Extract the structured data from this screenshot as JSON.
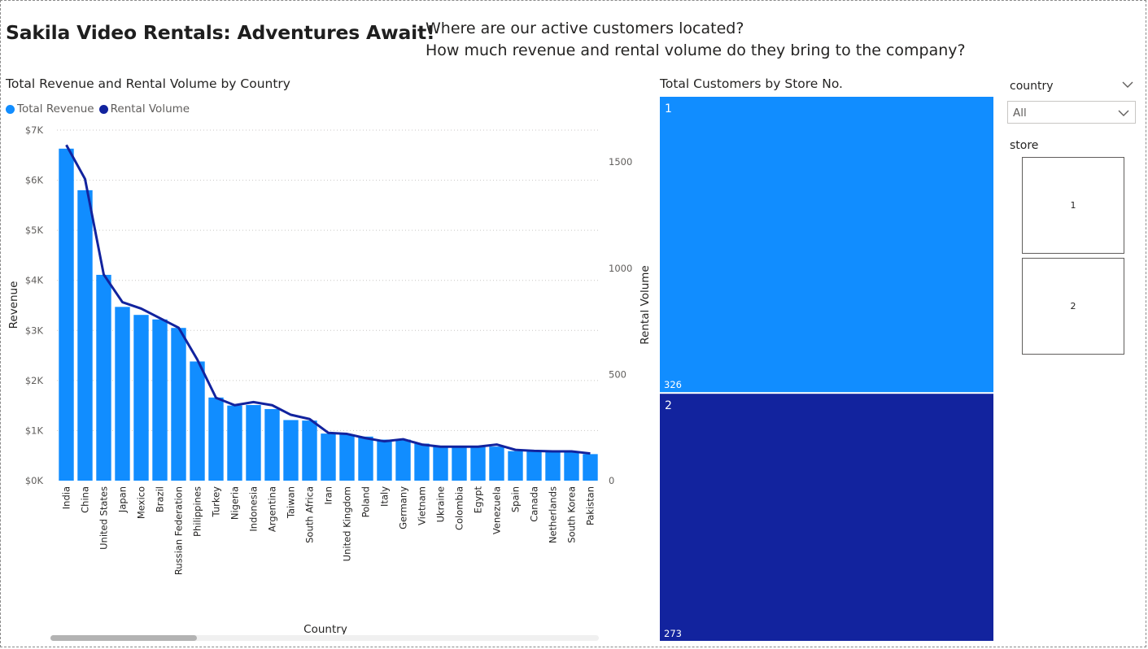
{
  "header": {
    "title": "Sakila Video Rentals: Adventures Await!",
    "question_1": "Where are our active customers located?",
    "question_2": "How much revenue and rental volume do they bring to the company?"
  },
  "combo_chart": {
    "title": "Total Revenue and Rental Volume by Country",
    "legend": [
      {
        "label": "Total Revenue",
        "color": "#118dff"
      },
      {
        "label": "Rental Volume",
        "color": "#12239e"
      }
    ]
  },
  "treemap": {
    "title": "Total Customers by Store No."
  },
  "slicers": {
    "country": {
      "label": "country",
      "selected": "All"
    },
    "store": {
      "label": "store",
      "tiles": [
        "1",
        "2"
      ]
    }
  },
  "icons": {
    "country_header": "chevron-down-icon",
    "country_dropdown": "chevron-down-icon"
  },
  "chart_data": [
    {
      "type": "bar",
      "title": "Total Revenue and Rental Volume by Country",
      "xlabel": "Country",
      "ylabel": "Revenue",
      "y2label": "Rental Volume",
      "ylim": [
        0,
        7000
      ],
      "y2lim": [
        0,
        1650
      ],
      "yticks": [
        "$0K",
        "$1K",
        "$2K",
        "$3K",
        "$4K",
        "$5K",
        "$6K",
        "$7K"
      ],
      "y2ticks": [
        "0",
        "500",
        "1000",
        "1500"
      ],
      "grid": true,
      "legend_position": "top-left",
      "categories": [
        "India",
        "China",
        "United States",
        "Japan",
        "Mexico",
        "Brazil",
        "Russian Federation",
        "Philippines",
        "Turkey",
        "Nigeria",
        "Indonesia",
        "Argentina",
        "Taiwan",
        "South Africa",
        "Iran",
        "United Kingdom",
        "Poland",
        "Italy",
        "Germany",
        "Vietnam",
        "Ukraine",
        "Colombia",
        "Egypt",
        "Venezuela",
        "Spain",
        "Canada",
        "Netherlands",
        "South Korea",
        "Pakistan"
      ],
      "series": [
        {
          "name": "Total Revenue",
          "type": "bar",
          "axis": "left",
          "color": "#118dff",
          "values": [
            6630,
            5800,
            4110,
            3470,
            3310,
            3220,
            3050,
            2380,
            1660,
            1500,
            1510,
            1430,
            1210,
            1200,
            940,
            920,
            880,
            820,
            820,
            740,
            690,
            690,
            690,
            680,
            590,
            580,
            570,
            570,
            530
          ]
        },
        {
          "name": "Rental Volume",
          "type": "line",
          "axis": "right",
          "color": "#12239e",
          "values": [
            1580,
            1420,
            970,
            840,
            810,
            765,
            720,
            570,
            390,
            355,
            370,
            355,
            310,
            290,
            225,
            220,
            200,
            185,
            195,
            170,
            160,
            160,
            160,
            170,
            145,
            140,
            138,
            138,
            128
          ]
        }
      ]
    },
    {
      "type": "treemap",
      "title": "Total Customers by Store No.",
      "categories": [
        "1",
        "2"
      ],
      "values": [
        326,
        273
      ],
      "colors": [
        "#118dff",
        "#12239e"
      ]
    }
  ]
}
